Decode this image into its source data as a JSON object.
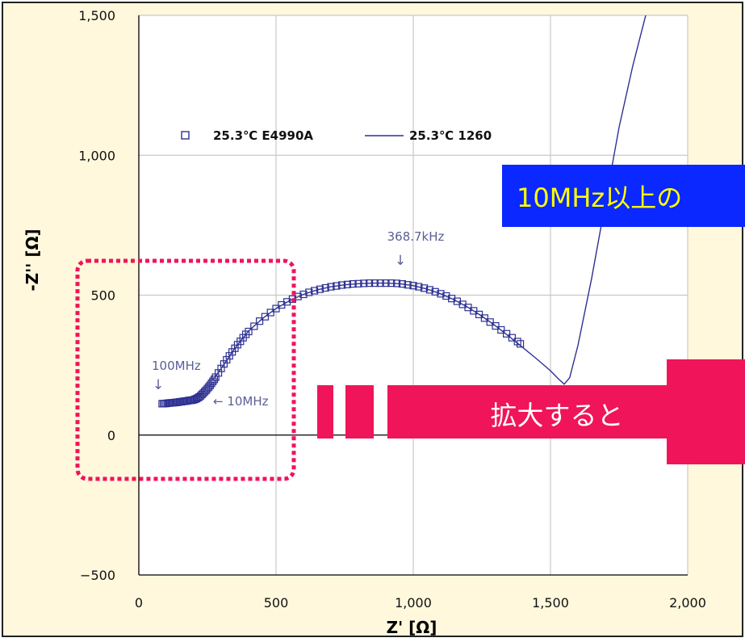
{
  "colors": {
    "panel_bg": "#fff8dc",
    "panel_border": "#222222",
    "plot_bg": "#ffffff",
    "grid": "#c8c8c8",
    "series": "#2e3192",
    "annotation": "#5a6096",
    "highlight": "#f0145a",
    "banner_bg": "#0a28ff",
    "banner_text": "#ffff00",
    "arrow_text": "#ffffff"
  },
  "banner": {
    "text": "10MHz以上の"
  },
  "arrow": {
    "text": "拡大すると"
  },
  "annotations": {
    "peak_label": "368.7kHz",
    "label_100mhz": "100MHz",
    "label_10mhz": "← 10MHz",
    "down_arrow": "↓"
  },
  "chart_data": {
    "type": "scatter",
    "xlabel": "Z' [Ω]",
    "ylabel": "-Z'' [Ω]",
    "xlim": [
      0,
      2000
    ],
    "ylim": [
      -500,
      1500
    ],
    "xticks": [
      0,
      500,
      1000,
      1500,
      2000
    ],
    "yticks": [
      -500,
      0,
      500,
      1000,
      1500
    ],
    "xtick_labels": [
      "0",
      "500",
      "1,000",
      "1,500",
      "2,000"
    ],
    "ytick_labels": [
      "−500",
      "0",
      "500",
      "1,000",
      "1,500"
    ],
    "grid": true,
    "legend_position": "upper-left",
    "series": [
      {
        "name": "25.3℃ E4990A",
        "marker": "open-square",
        "points": [
          [
            85,
            112
          ],
          [
            90,
            112
          ],
          [
            95,
            113
          ],
          [
            100,
            113
          ],
          [
            105,
            114
          ],
          [
            110,
            114
          ],
          [
            115,
            115
          ],
          [
            120,
            115
          ],
          [
            125,
            116
          ],
          [
            130,
            116
          ],
          [
            135,
            117
          ],
          [
            140,
            117
          ],
          [
            145,
            118
          ],
          [
            150,
            119
          ],
          [
            155,
            119
          ],
          [
            160,
            120
          ],
          [
            165,
            121
          ],
          [
            170,
            121
          ],
          [
            175,
            122
          ],
          [
            180,
            123
          ],
          [
            185,
            124
          ],
          [
            190,
            124
          ],
          [
            195,
            125
          ],
          [
            200,
            126
          ],
          [
            205,
            128
          ],
          [
            210,
            130
          ],
          [
            215,
            133
          ],
          [
            220,
            136
          ],
          [
            225,
            140
          ],
          [
            230,
            145
          ],
          [
            235,
            150
          ],
          [
            240,
            155
          ],
          [
            245,
            160
          ],
          [
            250,
            166
          ],
          [
            255,
            172
          ],
          [
            260,
            178
          ],
          [
            265,
            185
          ],
          [
            270,
            192
          ],
          [
            275,
            199
          ],
          [
            280,
            207
          ],
          [
            290,
            222
          ],
          [
            300,
            238
          ],
          [
            310,
            254
          ],
          [
            320,
            269
          ],
          [
            330,
            283
          ],
          [
            340,
            297
          ],
          [
            350,
            310
          ],
          [
            360,
            323
          ],
          [
            370,
            335
          ],
          [
            380,
            348
          ],
          [
            390,
            360
          ],
          [
            400,
            370
          ],
          [
            420,
            389
          ],
          [
            440,
            407
          ],
          [
            460,
            423
          ],
          [
            480,
            438
          ],
          [
            500,
            452
          ],
          [
            520,
            465
          ],
          [
            540,
            476
          ],
          [
            560,
            486
          ],
          [
            580,
            495
          ],
          [
            600,
            503
          ],
          [
            620,
            510
          ],
          [
            640,
            516
          ],
          [
            660,
            521
          ],
          [
            680,
            526
          ],
          [
            700,
            530
          ],
          [
            720,
            533
          ],
          [
            740,
            536
          ],
          [
            760,
            538
          ],
          [
            780,
            540
          ],
          [
            800,
            541
          ],
          [
            820,
            542
          ],
          [
            840,
            543
          ],
          [
            860,
            543
          ],
          [
            880,
            543
          ],
          [
            900,
            543
          ],
          [
            920,
            543
          ],
          [
            940,
            542
          ],
          [
            960,
            540
          ],
          [
            980,
            537
          ],
          [
            1000,
            534
          ],
          [
            1020,
            530
          ],
          [
            1040,
            525
          ],
          [
            1060,
            519
          ],
          [
            1080,
            512
          ],
          [
            1100,
            505
          ],
          [
            1120,
            497
          ],
          [
            1140,
            488
          ],
          [
            1160,
            478
          ],
          [
            1180,
            467
          ],
          [
            1200,
            456
          ],
          [
            1220,
            444
          ],
          [
            1240,
            431
          ],
          [
            1260,
            418
          ],
          [
            1280,
            404
          ],
          [
            1300,
            390
          ],
          [
            1320,
            376
          ],
          [
            1340,
            362
          ],
          [
            1360,
            348
          ],
          [
            1380,
            334
          ],
          [
            1390,
            326
          ]
        ]
      },
      {
        "name": "25.3℃ 1260",
        "marker": "line",
        "points": [
          [
            270,
            196
          ],
          [
            300,
            238
          ],
          [
            350,
            310
          ],
          [
            400,
            372
          ],
          [
            450,
            416
          ],
          [
            500,
            452
          ],
          [
            550,
            481
          ],
          [
            600,
            503
          ],
          [
            650,
            519
          ],
          [
            700,
            530
          ],
          [
            750,
            537
          ],
          [
            800,
            541
          ],
          [
            850,
            543
          ],
          [
            900,
            543
          ],
          [
            950,
            541
          ],
          [
            1000,
            534
          ],
          [
            1050,
            522
          ],
          [
            1100,
            505
          ],
          [
            1150,
            483
          ],
          [
            1200,
            456
          ],
          [
            1250,
            425
          ],
          [
            1300,
            390
          ],
          [
            1350,
            352
          ],
          [
            1400,
            312
          ],
          [
            1450,
            272
          ],
          [
            1500,
            230
          ],
          [
            1530,
            200
          ],
          [
            1550,
            182
          ],
          [
            1570,
            205
          ],
          [
            1600,
            320
          ],
          [
            1650,
            560
          ],
          [
            1700,
            830
          ],
          [
            1750,
            1100
          ],
          [
            1800,
            1320
          ],
          [
            1860,
            1550
          ]
        ]
      }
    ]
  }
}
